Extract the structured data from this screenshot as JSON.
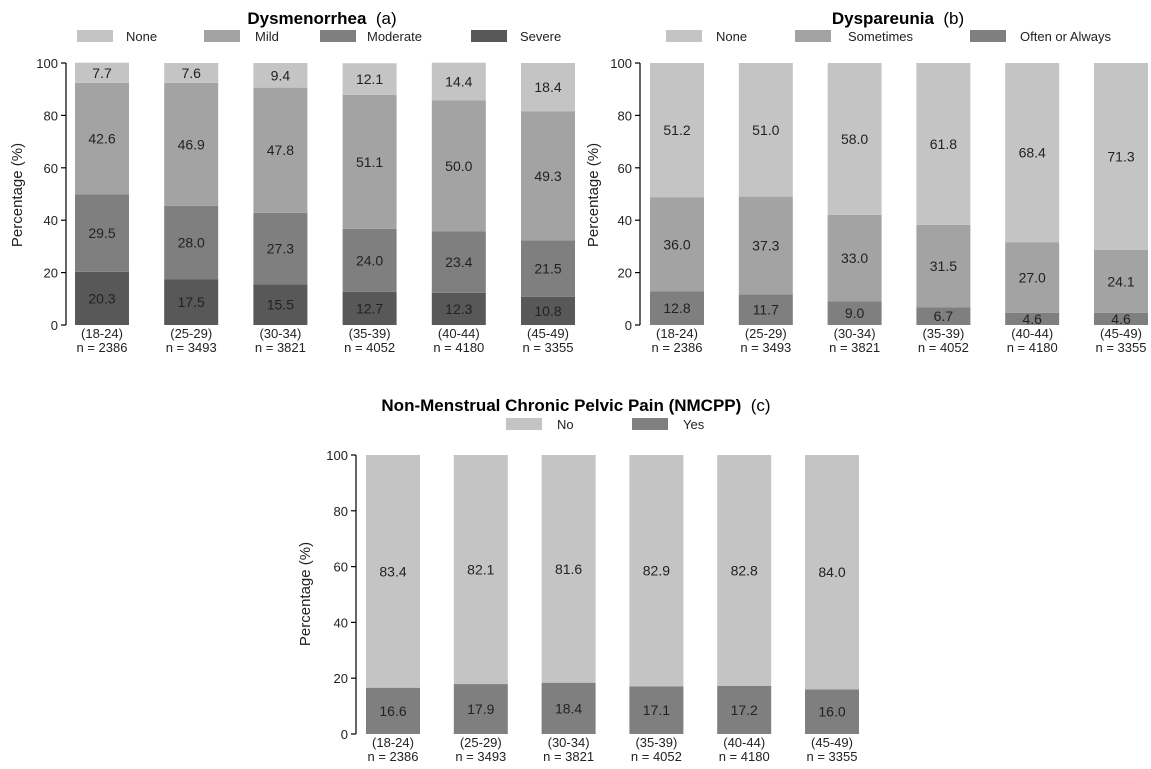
{
  "chart_data": [
    {
      "type": "bar",
      "stacked": true,
      "title": "Dysmenorrhea",
      "title_suffix": "(a)",
      "ylabel": "Percentage (%)",
      "ylim": [
        0,
        100
      ],
      "yticks": [
        "0",
        "20",
        "40",
        "60",
        "80",
        "100"
      ],
      "categories": [
        "(18-24)",
        "(25-29)",
        "(30-34)",
        "(35-39)",
        "(40-44)",
        "(45-49)"
      ],
      "category_counts": [
        "n = 2386",
        "n = 3493",
        "n = 3821",
        "n = 4052",
        "n = 4180",
        "n = 3355"
      ],
      "legend_position": "top",
      "series": [
        {
          "name": "Severe",
          "color": "#585858",
          "values": [
            20.3,
            17.5,
            15.5,
            12.7,
            12.3,
            10.8
          ],
          "labels": [
            "20.3",
            "17.5",
            "15.5",
            "12.7",
            "12.3",
            "10.8"
          ]
        },
        {
          "name": "Moderate",
          "color": "#7f7f7f",
          "values": [
            29.5,
            28.0,
            27.3,
            24.0,
            23.4,
            21.5
          ],
          "labels": [
            "29.5",
            "28.0",
            "27.3",
            "24.0",
            "23.4",
            "21.5"
          ]
        },
        {
          "name": "Mild",
          "color": "#a3a3a3",
          "values": [
            42.6,
            46.9,
            47.8,
            51.1,
            50.0,
            49.3
          ],
          "labels": [
            "42.6",
            "46.9",
            "47.8",
            "51.1",
            "50.0",
            "49.3"
          ]
        },
        {
          "name": "None",
          "color": "#c4c4c4",
          "values": [
            7.7,
            7.6,
            9.4,
            12.1,
            14.4,
            18.4
          ],
          "labels": [
            "7.7",
            "7.6",
            "9.4",
            "12.1",
            "14.4",
            "18.4"
          ]
        }
      ],
      "legend_order": [
        "None",
        "Mild",
        "Moderate",
        "Severe"
      ]
    },
    {
      "type": "bar",
      "stacked": true,
      "title": "Dyspareunia",
      "title_suffix": "(b)",
      "ylabel": "Percentage (%)",
      "ylim": [
        0,
        100
      ],
      "yticks": [
        "0",
        "20",
        "40",
        "60",
        "80",
        "100"
      ],
      "categories": [
        "(18-24)",
        "(25-29)",
        "(30-34)",
        "(35-39)",
        "(40-44)",
        "(45-49)"
      ],
      "category_counts": [
        "n = 2386",
        "n = 3493",
        "n = 3821",
        "n = 4052",
        "n = 4180",
        "n = 3355"
      ],
      "legend_position": "top",
      "series": [
        {
          "name": "Often or Always",
          "color": "#7f7f7f",
          "values": [
            12.8,
            11.7,
            9.0,
            6.7,
            4.6,
            4.6
          ],
          "labels": [
            "12.8",
            "11.7",
            "9.0",
            "6.7",
            "4.6",
            "4.6"
          ]
        },
        {
          "name": "Sometimes",
          "color": "#a3a3a3",
          "values": [
            36.0,
            37.3,
            33.0,
            31.5,
            27.0,
            24.1
          ],
          "labels": [
            "36.0",
            "37.3",
            "33.0",
            "31.5",
            "27.0",
            "24.1"
          ]
        },
        {
          "name": "None",
          "color": "#c4c4c4",
          "values": [
            51.2,
            51.0,
            58.0,
            61.8,
            68.4,
            71.3
          ],
          "labels": [
            "51.2",
            "51.0",
            "58.0",
            "61.8",
            "68.4",
            "71.3"
          ]
        }
      ],
      "legend_order": [
        "None",
        "Sometimes",
        "Often or Always"
      ]
    },
    {
      "type": "bar",
      "stacked": true,
      "title": "Non-Menstrual Chronic Pelvic Pain (NMCPP)",
      "title_suffix": "(c)",
      "ylabel": "Percentage (%)",
      "ylim": [
        0,
        100
      ],
      "yticks": [
        "0",
        "20",
        "40",
        "60",
        "80",
        "100"
      ],
      "categories": [
        "(18-24)",
        "(25-29)",
        "(30-34)",
        "(35-39)",
        "(40-44)",
        "(45-49)"
      ],
      "category_counts": [
        "n = 2386",
        "n = 3493",
        "n = 3821",
        "n = 4052",
        "n = 4180",
        "n = 3355"
      ],
      "legend_position": "top",
      "series": [
        {
          "name": "Yes",
          "color": "#7f7f7f",
          "values": [
            16.6,
            17.9,
            18.4,
            17.1,
            17.2,
            16.0
          ],
          "labels": [
            "16.6",
            "17.9",
            "18.4",
            "17.1",
            "17.2",
            "16.0"
          ]
        },
        {
          "name": "No",
          "color": "#c4c4c4",
          "values": [
            83.4,
            82.1,
            81.6,
            82.9,
            82.8,
            84.0
          ],
          "labels": [
            "83.4",
            "82.1",
            "81.6",
            "82.9",
            "82.8",
            "84.0"
          ]
        }
      ],
      "legend_order": [
        "No",
        "Yes"
      ]
    }
  ]
}
